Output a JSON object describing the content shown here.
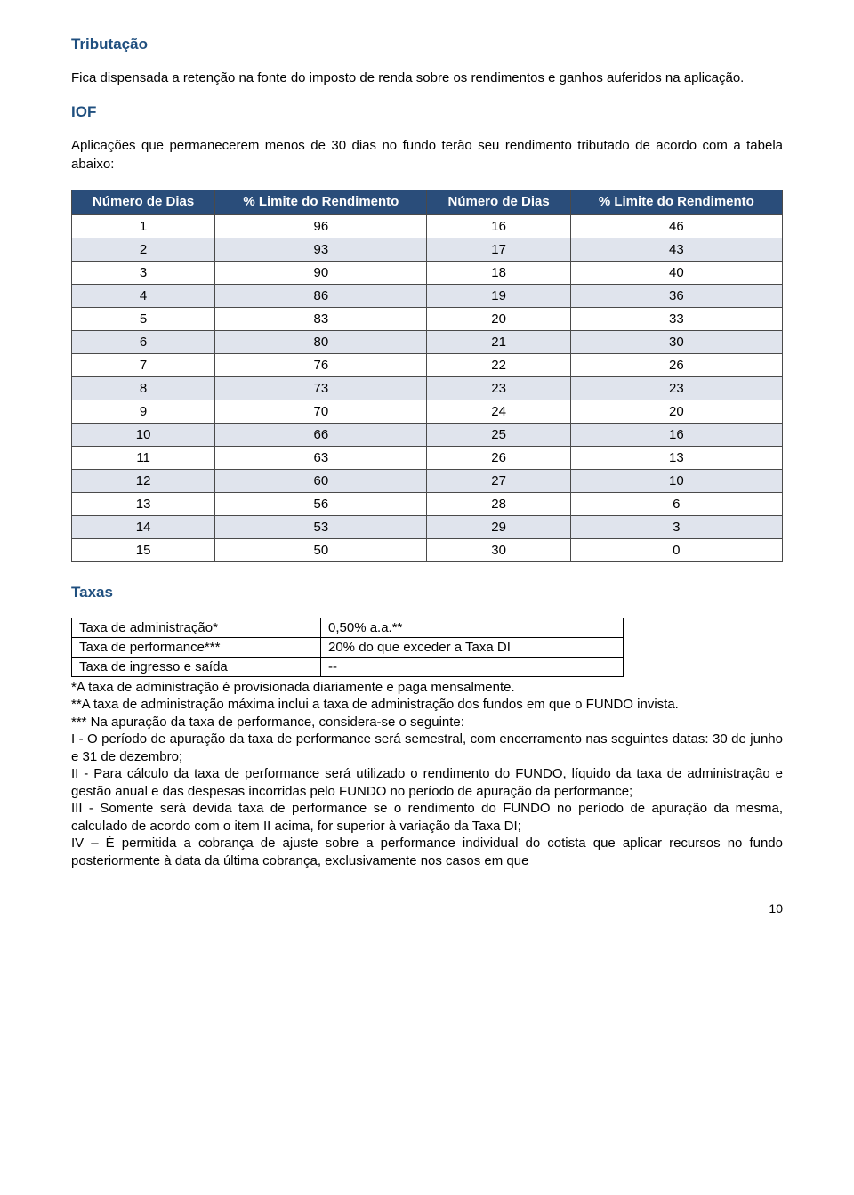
{
  "h1": "Tributação",
  "p1": "Fica dispensada a retenção na fonte do imposto de renda sobre os rendimentos e ganhos auferidos na aplicação.",
  "h2": "IOF",
  "p2": "Aplicações que permanecerem menos de 30 dias no fundo terão seu rendimento tributado de acordo com a tabela abaixo:",
  "iof": {
    "headers": [
      "Número de Dias",
      "% Limite do Rendimento",
      "Número de Dias",
      "% Limite do Rendimento"
    ],
    "rows": [
      [
        "1",
        "96",
        "16",
        "46"
      ],
      [
        "2",
        "93",
        "17",
        "43"
      ],
      [
        "3",
        "90",
        "18",
        "40"
      ],
      [
        "4",
        "86",
        "19",
        "36"
      ],
      [
        "5",
        "83",
        "20",
        "33"
      ],
      [
        "6",
        "80",
        "21",
        "30"
      ],
      [
        "7",
        "76",
        "22",
        "26"
      ],
      [
        "8",
        "73",
        "23",
        "23"
      ],
      [
        "9",
        "70",
        "24",
        "20"
      ],
      [
        "10",
        "66",
        "25",
        "16"
      ],
      [
        "11",
        "63",
        "26",
        "13"
      ],
      [
        "12",
        "60",
        "27",
        "10"
      ],
      [
        "13",
        "56",
        "28",
        "6"
      ],
      [
        "14",
        "53",
        "29",
        "3"
      ],
      [
        "15",
        "50",
        "30",
        "0"
      ]
    ],
    "header_bg": "#2a4d7a",
    "header_fg": "#ffffff",
    "row_shade_bg": "#e0e4ed",
    "row_plain_bg": "#ffffff",
    "border_color": "#4a4a4a"
  },
  "h3": "Taxas",
  "taxas": {
    "rows": [
      {
        "label": "Taxa de administração*",
        "value": "0,50% a.a.**"
      },
      {
        "label": "Taxa de performance***",
        "value": "20% do que exceder a Taxa DI"
      },
      {
        "label": "Taxa de ingresso e saída",
        "value": "--"
      }
    ]
  },
  "notes": "*A taxa de administração é provisionada diariamente e paga mensalmente.\n**A taxa de administração máxima inclui a taxa de administração dos fundos em que o FUNDO invista.\n*** Na apuração da taxa de performance, considera-se o seguinte:\nI - O período de apuração da taxa de performance será semestral, com encerramento nas seguintes datas: 30 de junho e 31 de dezembro;\nII - Para cálculo da taxa de performance será utilizado o rendimento do FUNDO, líquido da taxa de administração e gestão anual e das despesas incorridas pelo FUNDO no período de apuração da performance;\nIII - Somente será devida taxa de performance se o rendimento do FUNDO no período de apuração da mesma, calculado de acordo com o item II acima, for superior à variação da Taxa DI;\nIV – É permitida a cobrança de ajuste sobre a performance individual do cotista que aplicar recursos no fundo posteriormente à data da última cobrança, exclusivamente nos casos em que",
  "page_number": "10",
  "colors": {
    "heading": "#1f4f7f",
    "body": "#000000",
    "background": "#ffffff"
  },
  "fonts": {
    "body_size_pt": 11,
    "heading_size_pt": 12
  }
}
